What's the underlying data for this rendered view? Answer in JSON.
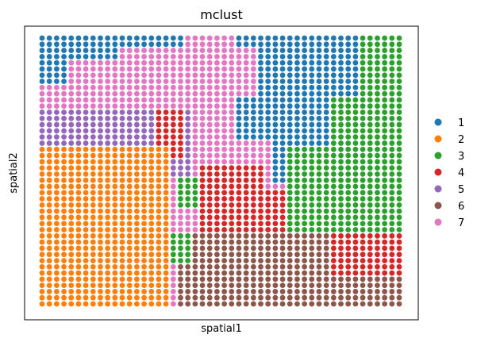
{
  "chart_data": {
    "type": "scatter",
    "title": "mclust",
    "xlabel": "spatial1",
    "ylabel": "spatial2",
    "grid": false,
    "legend": {
      "placement": "right"
    },
    "categories": [
      "1",
      "2",
      "3",
      "4",
      "5",
      "6",
      "7"
    ],
    "colors": {
      "1": "#1f77b4",
      "2": "#ff7f0e",
      "3": "#2ca02c",
      "4": "#d62728",
      "5": "#9467bd",
      "6": "#8c564b",
      "7": "#e377c2"
    },
    "grid_spots": {
      "columns": 50,
      "rows": 44
    },
    "regions": [
      {
        "cluster": "1",
        "description": "upper-left block and upper-right diagonal band"
      },
      {
        "cluster": "2",
        "description": "large lower-left block"
      },
      {
        "cluster": "3",
        "description": "right vertical band and small central strip"
      },
      {
        "cluster": "4",
        "description": "central-right diagonal band"
      },
      {
        "cluster": "5",
        "description": "mid-left horizontal band"
      },
      {
        "cluster": "6",
        "description": "bottom-center/right block"
      },
      {
        "cluster": "7",
        "description": "upper-center block"
      }
    ]
  }
}
